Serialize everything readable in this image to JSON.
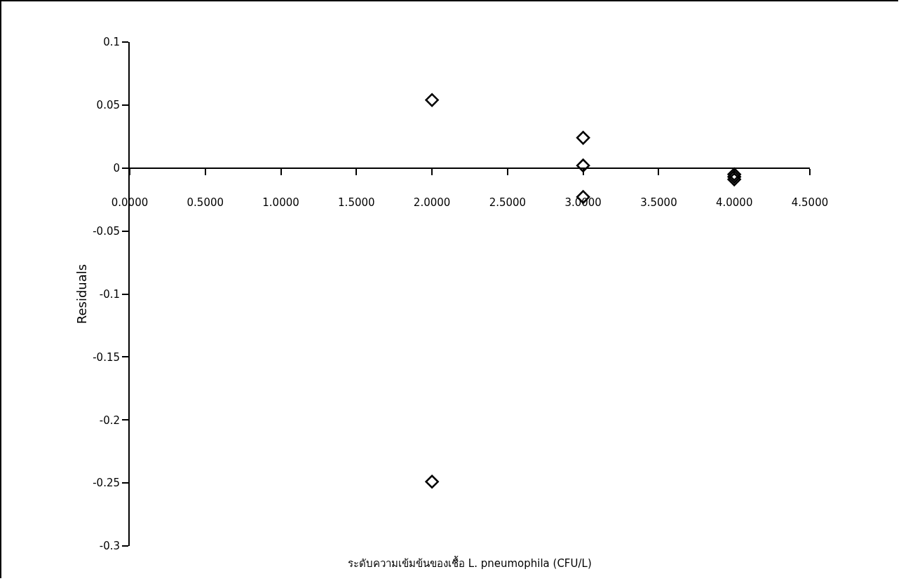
{
  "chart_data": {
    "type": "scatter",
    "xlabel": "ระดับความเข้มข้นของเชื้อ L. pneumophila (CFU/L)",
    "ylabel": "Residuals",
    "x": [
      2,
      2,
      3,
      3,
      3,
      4,
      4,
      4
    ],
    "values": [
      0.054,
      -0.249,
      0.024,
      0.002,
      -0.023,
      -0.005,
      -0.007,
      -0.009
    ],
    "color": "#000000",
    "marker": "diamond",
    "xlim": [
      0,
      4.5
    ],
    "xticks": [
      {
        "value": 0,
        "label": "0.0000"
      },
      {
        "value": 0.5,
        "label": "0.5000"
      },
      {
        "value": 1,
        "label": "1.0000"
      },
      {
        "value": 1.5,
        "label": "1.5000"
      },
      {
        "value": 2,
        "label": "2.0000"
      },
      {
        "value": 2.5,
        "label": "2.5000"
      },
      {
        "value": 3,
        "label": "3.0000"
      },
      {
        "value": 3.5,
        "label": "3.5000"
      },
      {
        "value": 4,
        "label": "4.0000"
      },
      {
        "value": 4.5,
        "label": "4.5000"
      }
    ],
    "ylim": [
      -0.3,
      0.1
    ],
    "yticks": [
      0.1,
      0.05,
      0,
      -0.05,
      -0.1,
      -0.15,
      -0.2,
      -0.25,
      -0.3
    ]
  }
}
